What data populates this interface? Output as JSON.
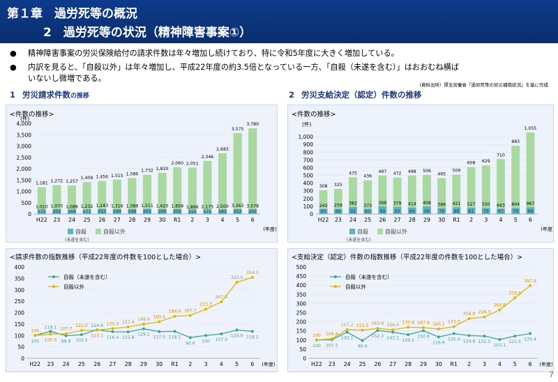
{
  "header": {
    "line1": "第１章　過労死等の概況",
    "line2": "2　過労死等の状況（精神障害事案①）"
  },
  "bullets": [
    {
      "dot": "●",
      "text": "精神障害事案の労災保険給付の請求件数は年々増加し続けており、特に令和5年度に大きく増加している。"
    },
    {
      "dot": "●",
      "text": "内訳を見ると、「自殺以外」は年々増加し、平成22年度の約3.5倍となっている一方、「自殺（未遂を含む）」はおおむね横ば"
    },
    {
      "dot": "",
      "text": "いないし微増である。"
    }
  ],
  "source": "(資料出所）厚生労働省「過労死等の労災補償状況」を基に作成",
  "sections": {
    "left": {
      "num": "1",
      "label": "労災請求件数",
      "suffix": "の推移"
    },
    "right": {
      "num": "2",
      "label": "労災支給決定（認定）件数の推移",
      "suffix": ""
    }
  },
  "page_number": "7",
  "colors": {
    "suicide": "#5fb3b8",
    "other": "#a9d8a1",
    "suicide_line": "#3aa39a",
    "other_line": "#e0b700",
    "other_label": "#e08a00"
  },
  "chart_data": [
    {
      "type": "bar",
      "stacked": true,
      "title": "<件数の推移>",
      "ylabel": "(件)",
      "xunit": "(年度)",
      "categories": [
        "H22",
        "23",
        "24",
        "25",
        "26",
        "27",
        "28",
        "29",
        "30",
        "R1",
        "2",
        "3",
        "4",
        "5",
        "6"
      ],
      "ylim": [
        0,
        4000
      ],
      "yticks": [
        0,
        500,
        1000,
        1500,
        2000,
        2500,
        3000,
        3500,
        4000
      ],
      "series": [
        {
          "name": "自殺",
          "name_note": "(未遂を含む)",
          "values": [
            171,
            202,
            169,
            177,
            213,
            199,
            198,
            221,
            200,
            202,
            155,
            171,
            183,
            212,
            202
          ]
        },
        {
          "name": "自殺以外",
          "values": [
            1010,
            1070,
            1088,
            1232,
            1243,
            1316,
            1388,
            1511,
            1620,
            1858,
            1896,
            2175,
            2500,
            3363,
            3578
          ]
        }
      ],
      "totals": [
        1181,
        1272,
        1257,
        1409,
        1456,
        1515,
        1586,
        1732,
        1820,
        2060,
        2051,
        2346,
        2683,
        3575,
        3780
      ]
    },
    {
      "type": "bar",
      "stacked": true,
      "title": "<件数の推移>",
      "ylabel": "(件)",
      "xunit": "(年度)",
      "categories": [
        "H22",
        "23",
        "24",
        "25",
        "26",
        "27",
        "28",
        "29",
        "30",
        "R1",
        "2",
        "3",
        "4",
        "5",
        "6"
      ],
      "ylim": [
        0,
        1100
      ],
      "yticks": [
        0,
        100,
        200,
        300,
        400,
        500,
        600,
        700,
        800,
        900,
        1000
      ],
      "series": [
        {
          "name": "自殺",
          "name_note": "(未遂を含む)",
          "values": [
            65,
            66,
            93,
            63,
            99,
            93,
            84,
            98,
            76,
            88,
            81,
            79,
            67,
            79,
            88
          ]
        },
        {
          "name": "自殺以外",
          "values": [
            243,
            259,
            382,
            373,
            398,
            379,
            414,
            408,
            389,
            421,
            527,
            550,
            643,
            804,
            967
          ]
        }
      ],
      "totals": [
        308,
        325,
        475,
        436,
        497,
        472,
        498,
        506,
        465,
        509,
        608,
        629,
        710,
        883,
        1055
      ]
    },
    {
      "type": "line",
      "title": "<請求件数の指数推移（平成22年度の件数を100とした場合）>",
      "xunit": "(年度)",
      "categories": [
        "H22",
        "23",
        "24",
        "25",
        "26",
        "27",
        "28",
        "29",
        "30",
        "R1",
        "2",
        "3",
        "4",
        "5",
        "6"
      ],
      "ylim": [
        0,
        400
      ],
      "yticks": [
        0,
        50,
        100,
        150,
        200,
        250,
        300,
        350,
        400
      ],
      "series": [
        {
          "name": "自殺（未遂を含む）",
          "values": [
            100,
            118.1,
            98.8,
            103.5,
            124.6,
            116.4,
            115.8,
            129.2,
            117.0,
            118.1,
            90.6,
            100.0,
            107.0,
            124.0,
            118.1
          ]
        },
        {
          "name": "自殺以外",
          "values": [
            100,
            105.9,
            107.7,
            122.0,
            123.1,
            130.3,
            137.4,
            149.6,
            160.4,
            184.0,
            187.7,
            215.3,
            247.5,
            333.0,
            354.3
          ]
        }
      ]
    },
    {
      "type": "line",
      "title": "<支給決定（認定）件数の指数推移（平成22年度の件数を100とした場合）>",
      "xunit": "(年度)",
      "categories": [
        "H22",
        "23",
        "24",
        "25",
        "26",
        "27",
        "28",
        "29",
        "30",
        "R1",
        "2",
        "3",
        "4",
        "5",
        "6"
      ],
      "ylim": [
        0,
        500
      ],
      "yticks": [
        0,
        50,
        100,
        150,
        200,
        250,
        300,
        350,
        400,
        450,
        500
      ],
      "series": [
        {
          "name": "自殺（未遂を含む）",
          "values": [
            100,
            101.5,
            143.1,
            96.9,
            152.3,
            143.1,
            129.2,
            150.8,
            116.9,
            135.4,
            124.6,
            121.5,
            103.1,
            121.5,
            135.4
          ]
        },
        {
          "name": "自殺以外",
          "values": [
            100,
            106.6,
            157.2,
            153.5,
            163.8,
            156.0,
            170.4,
            167.9,
            160.1,
            173.3,
            216.9,
            226.3,
            264.6,
            330.9,
            397.9
          ]
        }
      ]
    }
  ]
}
